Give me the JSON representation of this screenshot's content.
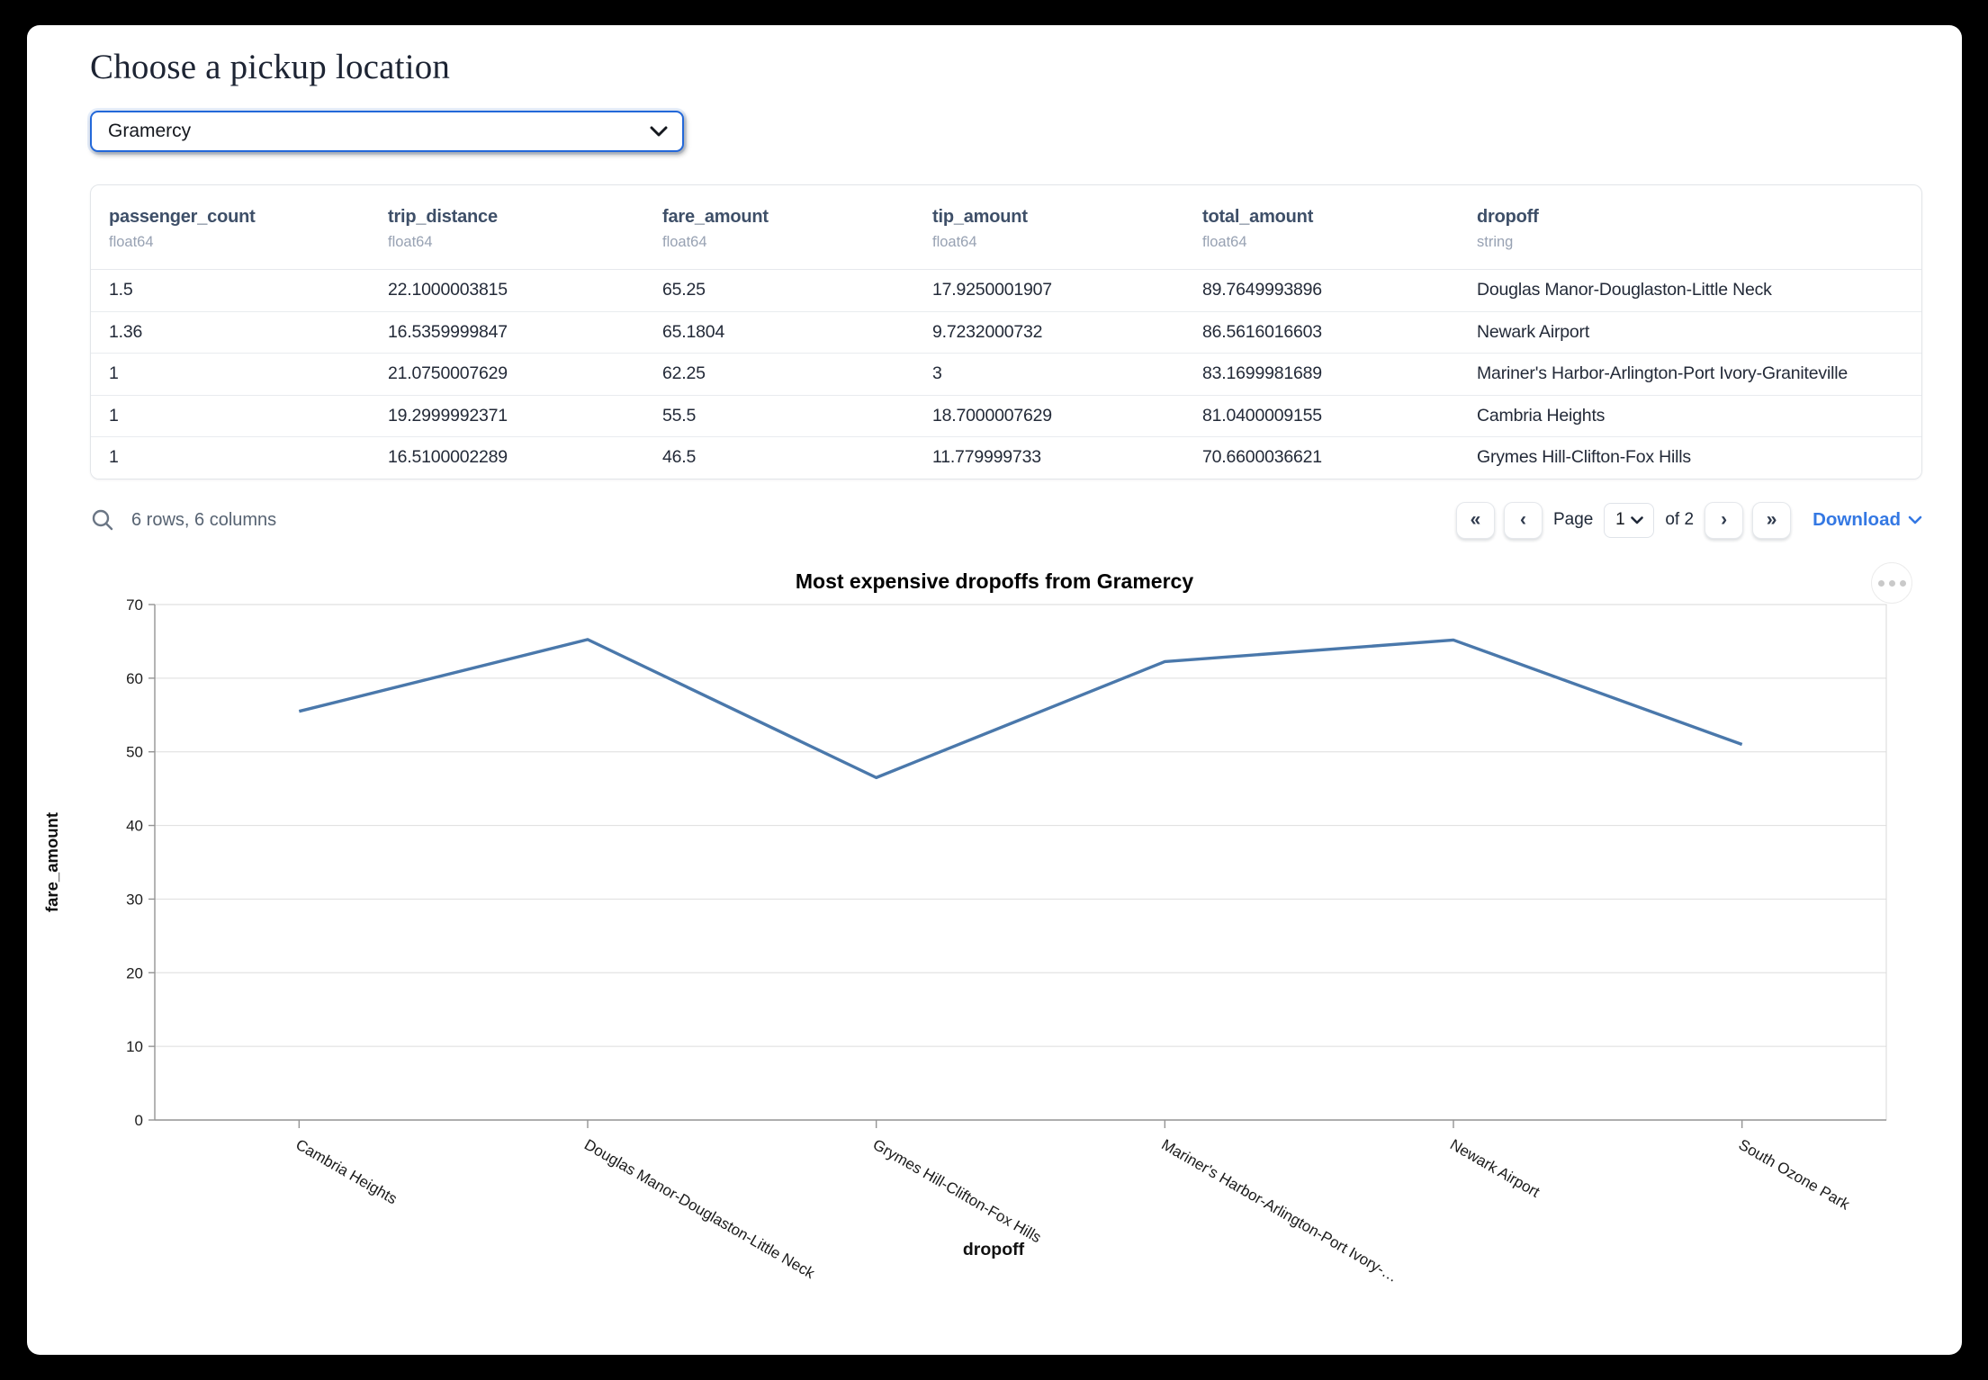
{
  "page": {
    "title": "Choose a pickup location"
  },
  "pickup_select": {
    "value": "Gramercy",
    "chevron_icon": "chevron-down-icon"
  },
  "table": {
    "columns": [
      {
        "name": "passenger_count",
        "dtype": "float64"
      },
      {
        "name": "trip_distance",
        "dtype": "float64"
      },
      {
        "name": "fare_amount",
        "dtype": "float64"
      },
      {
        "name": "tip_amount",
        "dtype": "float64"
      },
      {
        "name": "total_amount",
        "dtype": "float64"
      },
      {
        "name": "dropoff",
        "dtype": "string"
      }
    ],
    "rows": [
      [
        "1.5",
        "22.1000003815",
        "65.25",
        "17.9250001907",
        "89.7649993896",
        "Douglas Manor-Douglaston-Little Neck"
      ],
      [
        "1.36",
        "16.5359999847",
        "65.1804",
        "9.7232000732",
        "86.5616016603",
        "Newark Airport"
      ],
      [
        "1",
        "21.0750007629",
        "62.25",
        "3",
        "83.1699981689",
        "Mariner's Harbor-Arlington-Port Ivory-Graniteville"
      ],
      [
        "1",
        "19.2999992371",
        "55.5",
        "18.7000007629",
        "81.0400009155",
        "Cambria Heights"
      ],
      [
        "1",
        "16.5100002289",
        "46.5",
        "11.779999733",
        "70.6600036621",
        "Grymes Hill-Clifton-Fox Hills"
      ]
    ]
  },
  "table_footer": {
    "search_icon": "magnifier-icon",
    "summary": "6 rows, 6 columns",
    "pagination": {
      "first": "«",
      "prev": "‹",
      "page_label": "Page",
      "page_value": "1",
      "of_label": "of 2",
      "next": "›",
      "last": "»"
    },
    "download_label": "Download"
  },
  "chart_data": {
    "type": "line",
    "title": "Most expensive dropoffs from Gramercy",
    "xlabel": "dropoff",
    "ylabel": "fare_amount",
    "categories": [
      "Cambria Heights",
      "Douglas Manor-Douglaston-Little Neck",
      "Grymes Hill-Clifton-Fox Hills",
      "Mariner's Harbor-Arlington-Port Ivory-Graniteville",
      "Newark Airport",
      "South Ozone Park"
    ],
    "tick_labels": [
      "Cambria Heights",
      "Douglas Manor-Douglaston-Little Neck",
      "Grymes Hill-Clifton-Fox Hills",
      "Mariner's Harbor-Arlington-Port Ivory-…",
      "Newark Airport",
      "South Ozone Park"
    ],
    "values": [
      55.5,
      65.25,
      46.5,
      62.25,
      65.1804,
      51
    ],
    "ylim": [
      0,
      70
    ],
    "yticks": [
      0,
      10,
      20,
      30,
      40,
      50,
      60,
      70
    ],
    "grid": true,
    "legend": "none",
    "line_color": "#4a78ab",
    "menu_icon": "ellipsis-icon"
  },
  "colors": {
    "select_border": "#2368d9",
    "link_blue": "#3478e3",
    "line_blue": "#4a78ab",
    "header_text": "#3e4f68",
    "dtype_text": "#98a2b3"
  }
}
